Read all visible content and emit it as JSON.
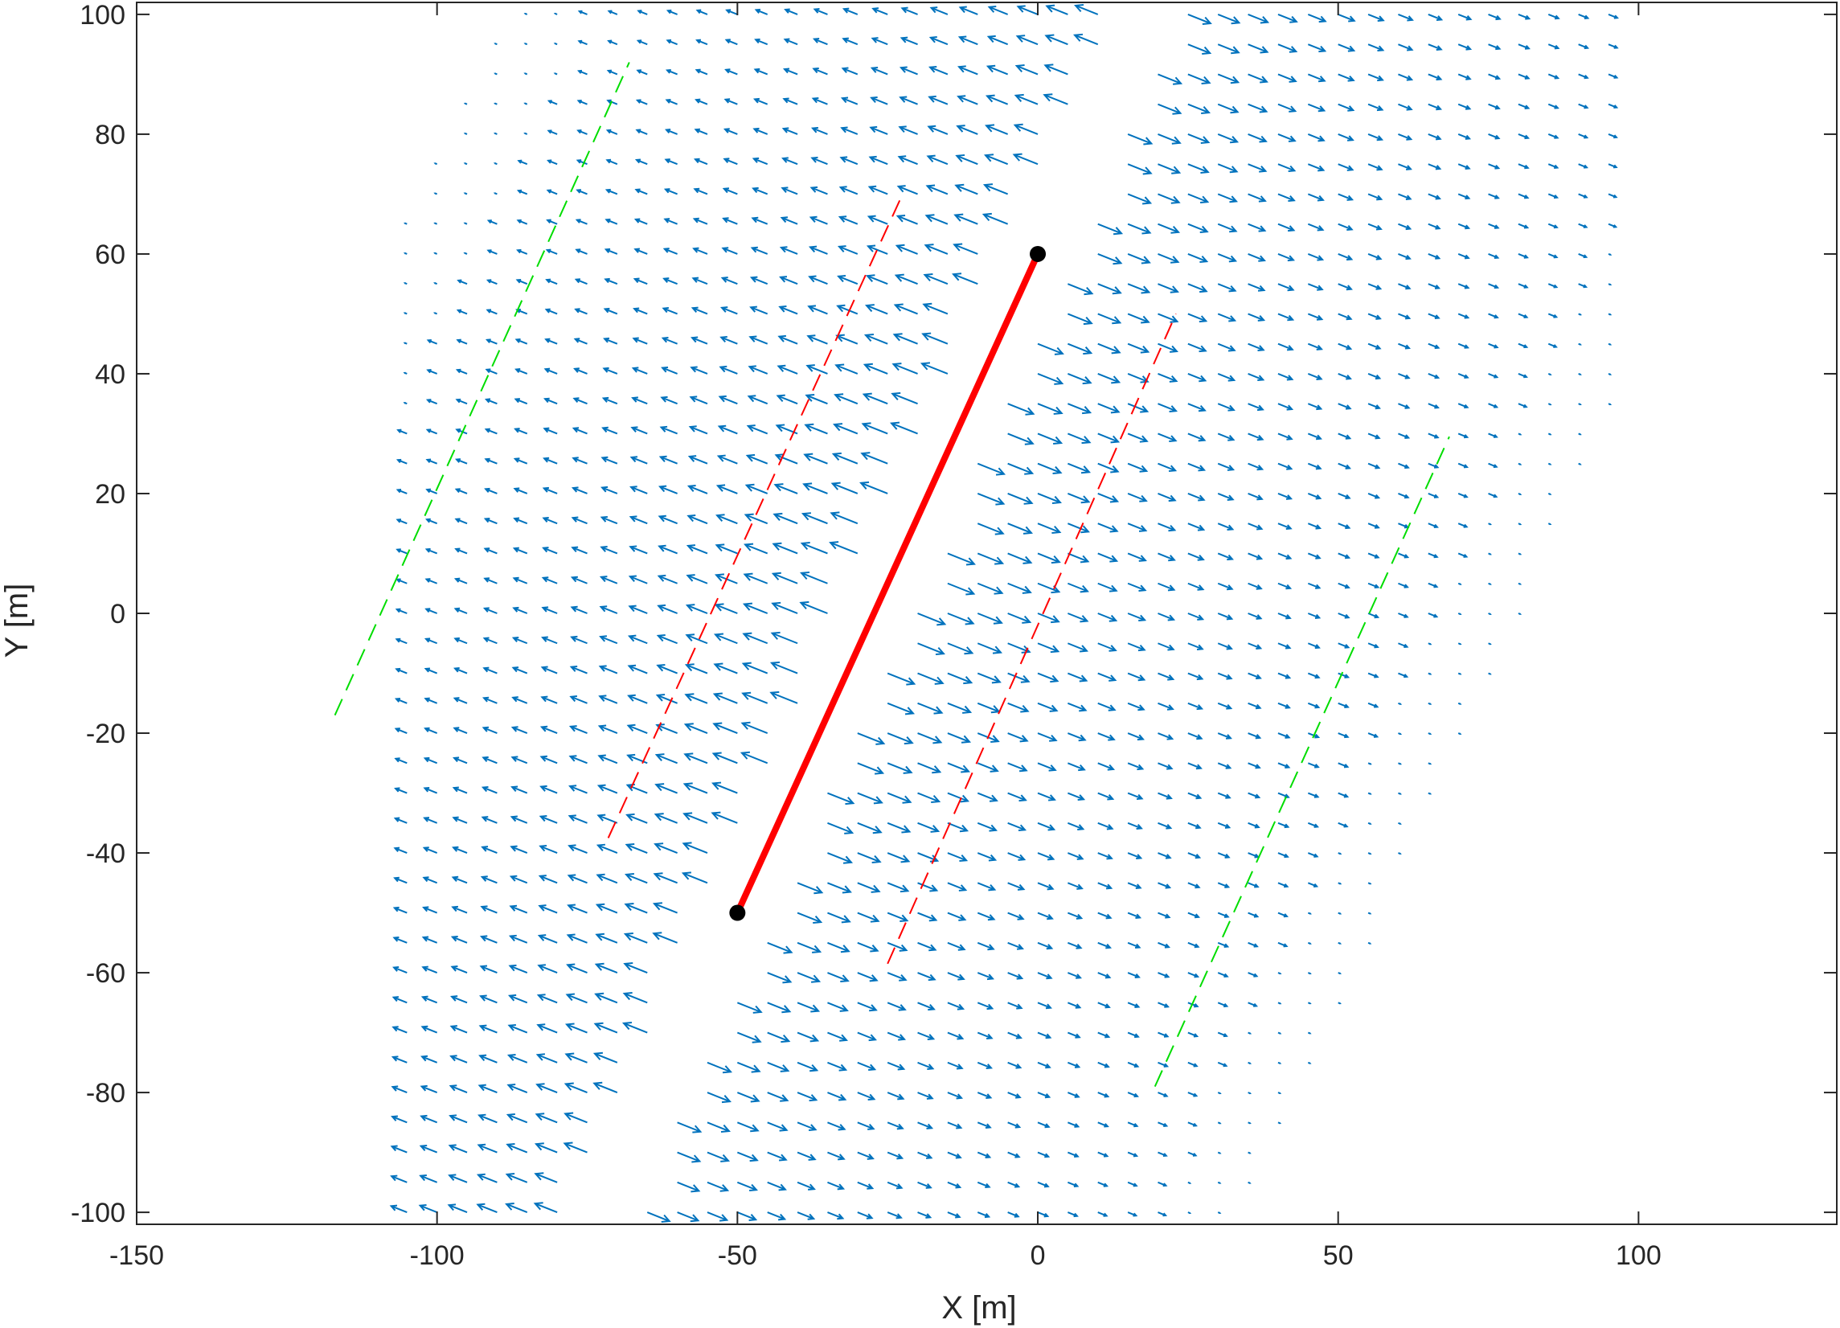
{
  "chart_data": {
    "type": "quiver",
    "title": "",
    "xlabel": "X [m]",
    "ylabel": "Y [m]",
    "xlim": [
      -150,
      133
    ],
    "ylim": [
      -102,
      102
    ],
    "xticks": [
      -150,
      -100,
      -50,
      0,
      50,
      100
    ],
    "yticks": [
      -100,
      -80,
      -60,
      -40,
      -20,
      0,
      20,
      40,
      60,
      80,
      100
    ],
    "xtick_labels": [
      "-150",
      "-100",
      "-50",
      "0",
      "50",
      "100"
    ],
    "ytick_labels": [
      "-100",
      "-80",
      "-60",
      "-40",
      "-20",
      "0",
      "20",
      "40",
      "60",
      "80",
      "100"
    ],
    "grid": false,
    "legend": null,
    "fault": {
      "start": [
        -50,
        -50
      ],
      "end": [
        0,
        60
      ],
      "color": "#ff0000",
      "endpoint_color": "#000000"
    },
    "dashed_lines": [
      {
        "color": "#ff0000",
        "points": [
          [
            -71.5,
            -37.5
          ],
          [
            -22.5,
            70
          ]
        ]
      },
      {
        "color": "#ff0000",
        "points": [
          [
            -25,
            -58.5
          ],
          [
            23,
            50
          ]
        ]
      },
      {
        "color": "#00dd00",
        "points": [
          [
            -117,
            -17
          ],
          [
            -68,
            92
          ]
        ]
      },
      {
        "color": "#00dd00",
        "points": [
          [
            19.5,
            -79
          ],
          [
            68.5,
            29.5
          ]
        ]
      }
    ],
    "vector_field": {
      "color": "#0072bd",
      "dx": 5,
      "dy": 5,
      "x_range": [
        -105,
        95
      ],
      "y_range": [
        -100,
        100
      ],
      "region_band_width": 100,
      "description": "Displacement vectors on a 5 m grid: leftward-up on the west side of the fault, rightward-down on the east side, magnitudes decaying away from the fault"
    }
  }
}
